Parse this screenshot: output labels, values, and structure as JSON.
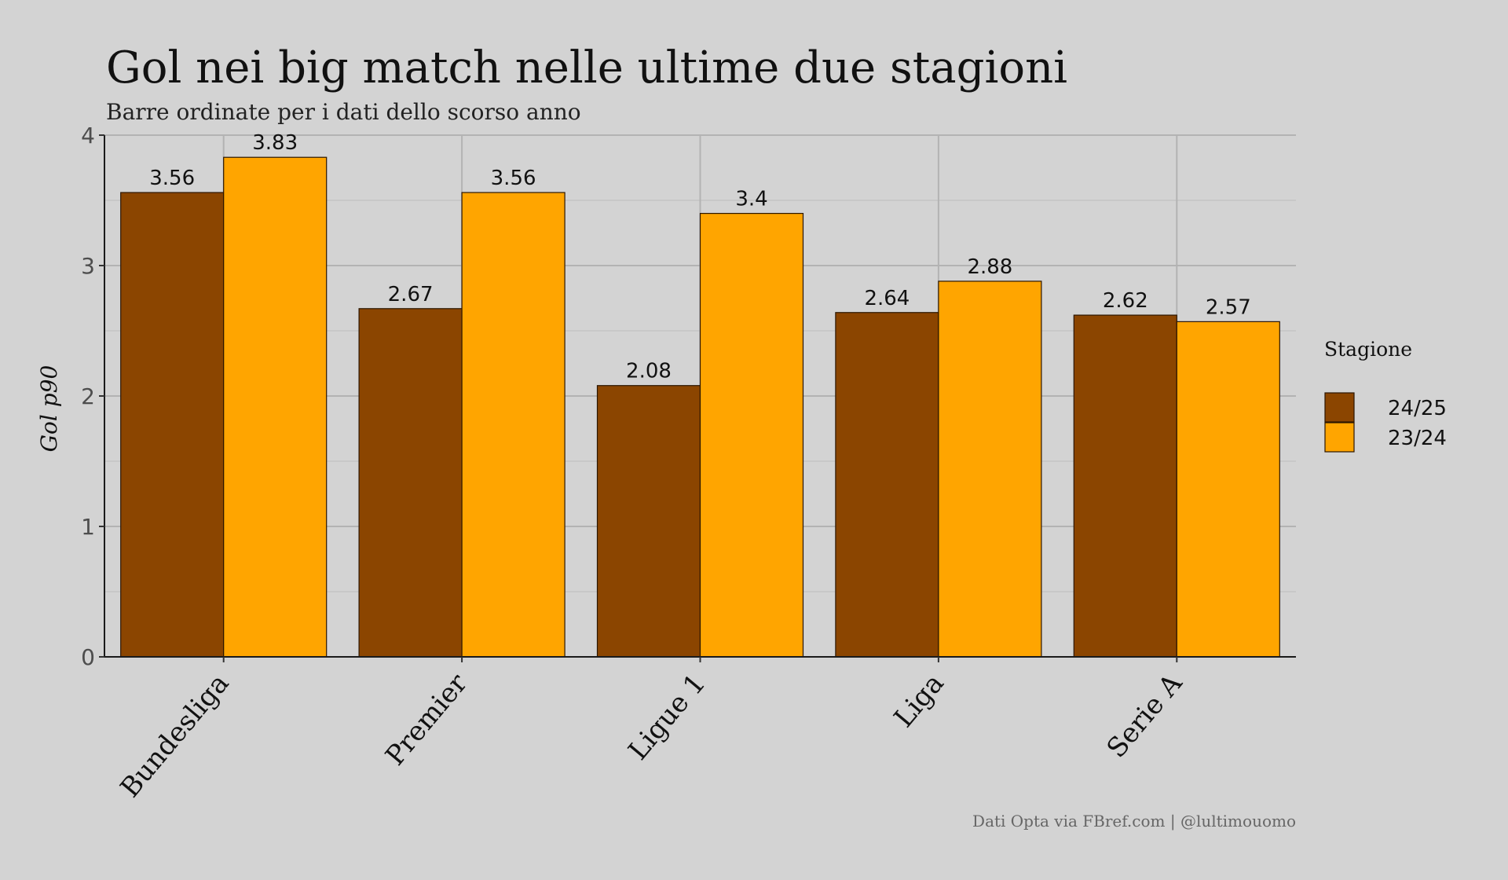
{
  "chart_data": {
    "type": "bar",
    "title": "Gol nei big match nelle ultime due stagioni",
    "subtitle": "Barre ordinate per i dati dello scorso anno",
    "xlabel": "",
    "ylabel": "Gol p90",
    "ylim": [
      0,
      4
    ],
    "y_ticks": [
      "0",
      "1",
      "2",
      "3",
      "4"
    ],
    "grid": true,
    "legend_title": "Stagione",
    "legend_position": "right",
    "caption": "Dati Opta via FBref.com | @lultimouomo",
    "categories": [
      "Bundesliga",
      "Premier",
      "Ligue 1",
      "Liga",
      "Serie A"
    ],
    "series": [
      {
        "name": "24/25",
        "color": "#8b4500",
        "values": [
          3.56,
          2.67,
          2.08,
          2.64,
          2.62
        ],
        "labels": [
          "3.56",
          "2.67",
          "2.08",
          "2.64",
          "2.62"
        ]
      },
      {
        "name": "23/24",
        "color": "#ffa500",
        "values": [
          3.83,
          3.56,
          3.4,
          2.88,
          2.57
        ],
        "labels": [
          "3.83",
          "3.56",
          "3.4",
          "2.88",
          "2.57"
        ]
      }
    ]
  }
}
